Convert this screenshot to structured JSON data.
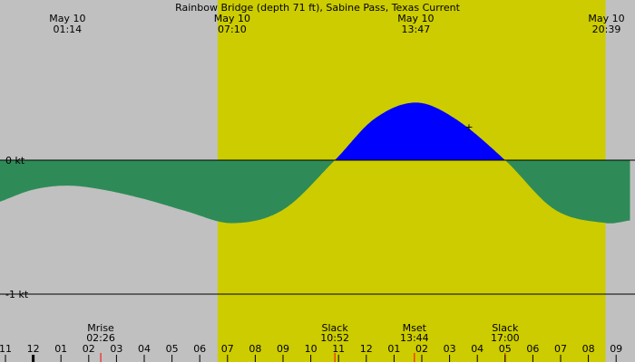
{
  "chart_data": {
    "type": "area",
    "title": "Rainbow Bridge (depth 71 ft), Sabine Pass, Texas Current",
    "unit": "kt",
    "y_ticks": [
      {
        "value": 0,
        "label": "0 kt"
      },
      {
        "value": -1,
        "label": "-1 kt"
      }
    ],
    "x_range_hours": [
      23.0,
      33.2
    ],
    "y_range": [
      -1.15,
      1.17
    ],
    "daylight_hours": [
      30.4,
      43.6
    ],
    "top_events": [
      {
        "date": "May 10",
        "time": "01:14",
        "hour": 1.233
      },
      {
        "date": "May 10",
        "time": "07:10",
        "hour": 7.167
      },
      {
        "date": "May 10",
        "time": "13:47",
        "hour": 13.783
      },
      {
        "date": "May 10",
        "time": "20:39",
        "hour": 20.65
      }
    ],
    "bottom_events": [
      {
        "label": "Mrise",
        "time": "02:26",
        "hour": 2.433,
        "marker": "red"
      },
      {
        "label": "Slack",
        "time": "10:52",
        "hour": 10.867,
        "marker": "red"
      },
      {
        "label": "Mset",
        "time": "13:44",
        "hour": 13.733,
        "marker": "red"
      },
      {
        "label": "Slack",
        "time": "17:00",
        "hour": 17.0,
        "marker": "red"
      }
    ],
    "hour_ticks": [
      "11",
      "12",
      "01",
      "02",
      "03",
      "04",
      "05",
      "06",
      "07",
      "08",
      "09",
      "10",
      "11",
      "12",
      "01",
      "02",
      "03",
      "04",
      "05",
      "06",
      "07",
      "08",
      "09"
    ],
    "series": [
      {
        "x": [
          -1.2,
          0.0,
          1.233,
          2.5,
          4.0,
          5.5,
          7.167,
          9.0,
          10.867,
          12.3,
          13.783,
          15.2,
          17.0,
          18.8,
          20.65,
          21.5
        ],
        "y": [
          -0.31,
          -0.22,
          -0.19,
          -0.22,
          -0.29,
          -0.38,
          -0.47,
          -0.37,
          0.0,
          0.31,
          0.43,
          0.31,
          0.0,
          -0.37,
          -0.47,
          -0.45
        ]
      }
    ],
    "marker_point": {
      "hour": 15.7,
      "value": 0.25,
      "symbol": "+"
    },
    "colors": {
      "background": "#c0c0c0",
      "daylight": "#cccc00",
      "ebb_fill": "#2e8b57",
      "flood_fill": "#0000ff",
      "axis": "#000000",
      "marker_red": "#ff0000"
    }
  }
}
